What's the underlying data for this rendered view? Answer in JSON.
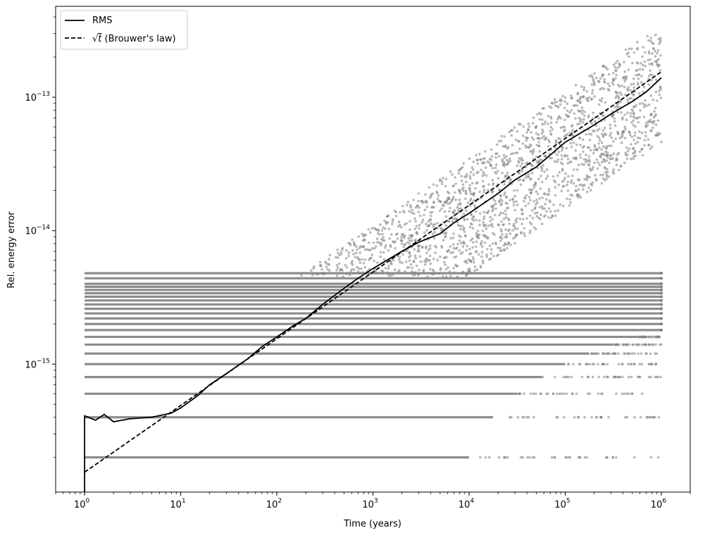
{
  "chart_data": {
    "type": "scatter",
    "xlabel": "Time (years)",
    "ylabel": "Rel. energy error",
    "xscale": "log",
    "yscale": "log",
    "xlim": [
      0.5,
      2000000
    ],
    "ylim": [
      1.1e-16,
      4.8e-13
    ],
    "x_ticks": [
      {
        "value": 1,
        "base": "10",
        "exp": "0"
      },
      {
        "value": 10,
        "base": "10",
        "exp": "1"
      },
      {
        "value": 100,
        "base": "10",
        "exp": "2"
      },
      {
        "value": 1000,
        "base": "10",
        "exp": "3"
      },
      {
        "value": 10000,
        "base": "10",
        "exp": "4"
      },
      {
        "value": 100000,
        "base": "10",
        "exp": "5"
      },
      {
        "value": 1000000,
        "base": "10",
        "exp": "6"
      }
    ],
    "y_ticks": [
      {
        "value": 1e-15,
        "base": "10",
        "exp": "−15"
      },
      {
        "value": 1e-14,
        "base": "10",
        "exp": "−14"
      },
      {
        "value": 1e-13,
        "base": "10",
        "exp": "−13"
      }
    ],
    "grid": false,
    "legend": {
      "position": "top-left",
      "entries": [
        {
          "label": "RMS",
          "style": "solid"
        },
        {
          "label_prefix": "√",
          "label_sqrt_arg": "t",
          "label_suffix": " (Brouwer's law)",
          "style": "dashed"
        }
      ]
    },
    "series": [
      {
        "name": "RMS",
        "kind": "line",
        "style": "solid",
        "color": "#000000",
        "points": [
          [
            1,
            1.1e-16
          ],
          [
            1,
            4.1e-16
          ],
          [
            1.3,
            3.8e-16
          ],
          [
            1.6,
            4.2e-16
          ],
          [
            2,
            3.7e-16
          ],
          [
            3,
            3.9e-16
          ],
          [
            5,
            4e-16
          ],
          [
            8,
            4.3e-16
          ],
          [
            10,
            4.7e-16
          ],
          [
            15,
            5.8e-16
          ],
          [
            20,
            7e-16
          ],
          [
            30,
            8.5e-16
          ],
          [
            50,
            1.1e-15
          ],
          [
            70,
            1.35e-15
          ],
          [
            100,
            1.6e-15
          ],
          [
            150,
            1.95e-15
          ],
          [
            200,
            2.2e-15
          ],
          [
            300,
            2.8e-15
          ],
          [
            500,
            3.7e-15
          ],
          [
            700,
            4.4e-15
          ],
          [
            1000,
            5.2e-15
          ],
          [
            2000,
            7e-15
          ],
          [
            3000,
            8.2e-15
          ],
          [
            5000,
            9.5e-15
          ],
          [
            7000,
            1.15e-14
          ],
          [
            10000,
            1.35e-14
          ],
          [
            20000,
            1.9e-14
          ],
          [
            30000,
            2.4e-14
          ],
          [
            50000,
            3e-14
          ],
          [
            100000,
            4.6e-14
          ],
          [
            200000,
            6.2e-14
          ],
          [
            300000,
            7.5e-14
          ],
          [
            500000,
            9.3e-14
          ],
          [
            700000,
            1.1e-13
          ],
          [
            1000000,
            1.4e-13
          ]
        ]
      },
      {
        "name": "√t (Brouwer's law)",
        "kind": "line",
        "style": "dashed",
        "color": "#000000",
        "points": [
          [
            1,
            1.55e-16
          ],
          [
            1000000,
            1.55e-13
          ]
        ]
      },
      {
        "name": "",
        "kind": "scatter",
        "color": "#808080",
        "description_levels": [
          2e-16,
          4e-16,
          6e-16,
          8e-16,
          1e-15,
          1.2e-15,
          1.4e-15,
          1.6e-15,
          1.8e-15,
          2e-15,
          2.2e-15,
          2.4e-15,
          2.6e-15,
          2.8e-15,
          3e-15,
          3.2e-15,
          3.4e-15,
          3.6e-15,
          3.8e-15,
          4e-15,
          4.4e-15,
          4.8e-15
        ],
        "quantized_bands": [
          {
            "level": 2e-16,
            "x_end": 1000000
          },
          {
            "level": 4e-16,
            "x_end": 1000000
          },
          {
            "level": 6e-16,
            "x_end": 1000000
          },
          {
            "level": 8e-16,
            "x_end": 1000000
          },
          {
            "level": 1e-15,
            "x_end": 1000000
          },
          {
            "level": 1.2e-15,
            "x_end": 1000000
          },
          {
            "level": 1.4e-15,
            "x_end": 1000000
          },
          {
            "level": 1.6e-15,
            "x_end": 1000000
          },
          {
            "level": 1.8e-15,
            "x_end": 1000000
          },
          {
            "level": 2e-15,
            "x_end": 1000000
          },
          {
            "level": 2.2e-15,
            "x_end": 1000000
          },
          {
            "level": 2.4e-15,
            "x_end": 1000000
          }
        ],
        "upper_envelope": [
          [
            100,
            3e-15
          ],
          [
            1000,
            1.5e-14
          ],
          [
            10000,
            6e-14
          ],
          [
            100000,
            1.5e-13
          ],
          [
            600000,
            3.1e-13
          ],
          [
            1000000,
            3e-13
          ]
        ]
      }
    ]
  }
}
